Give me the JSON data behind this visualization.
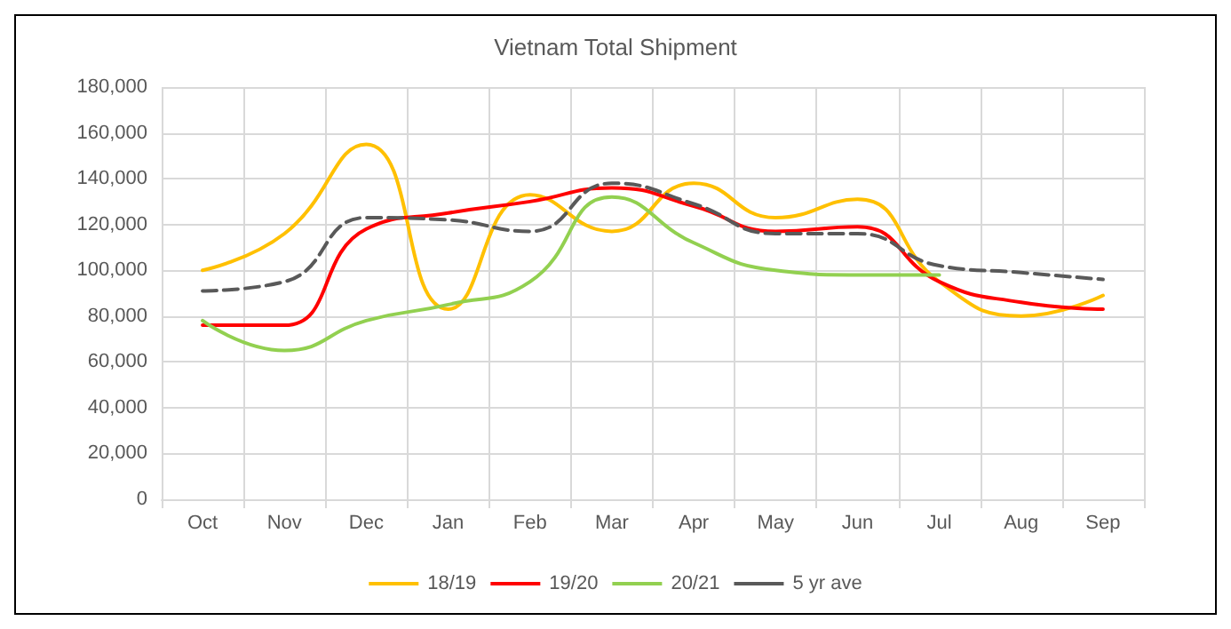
{
  "chart_data": {
    "type": "line",
    "title": "Vietnam Total Shipment",
    "categories": [
      "Oct",
      "Nov",
      "Dec",
      "Jan",
      "Feb",
      "Mar",
      "Apr",
      "May",
      "Jun",
      "Jul",
      "Aug",
      "Sep"
    ],
    "series": [
      {
        "name": "18/19",
        "color": "#ffc000",
        "values": [
          100000,
          116000,
          155000,
          83000,
          133000,
          117000,
          138000,
          123000,
          131000,
          95000,
          80000,
          89000
        ]
      },
      {
        "name": "19/20",
        "color": "#ff0000",
        "values": [
          76000,
          76000,
          118000,
          125000,
          130000,
          136000,
          128000,
          117000,
          119000,
          95000,
          86000,
          83000
        ]
      },
      {
        "name": "20/21",
        "color": "#92d050",
        "values": [
          78000,
          65000,
          78000,
          85000,
          95000,
          132000,
          112000,
          100000,
          98000,
          98000,
          null,
          null
        ]
      },
      {
        "name": "5 yr ave",
        "color": "#595959",
        "line_style": "dashed",
        "values": [
          91000,
          95000,
          123000,
          122000,
          117000,
          138000,
          129000,
          116000,
          116000,
          102000,
          99000,
          96000
        ]
      }
    ],
    "ylim": [
      0,
      180000
    ],
    "yticks": [
      0,
      {
        "value": 20000,
        "label": "20,000"
      },
      {
        "value": 40000,
        "label": "40,000"
      },
      {
        "value": 60000,
        "label": "60,000"
      },
      {
        "value": 80000,
        "label": "80,000"
      },
      {
        "value": 100000,
        "label": "100,000"
      },
      {
        "value": 120000,
        "label": "120,000"
      },
      {
        "value": 140000,
        "label": "140,000"
      },
      {
        "value": 160000,
        "label": "160,000"
      },
      {
        "value": 180000,
        "label": "180,000"
      }
    ],
    "grid": true,
    "legend": "bottom",
    "marker": "none",
    "line_style": "solid"
  }
}
